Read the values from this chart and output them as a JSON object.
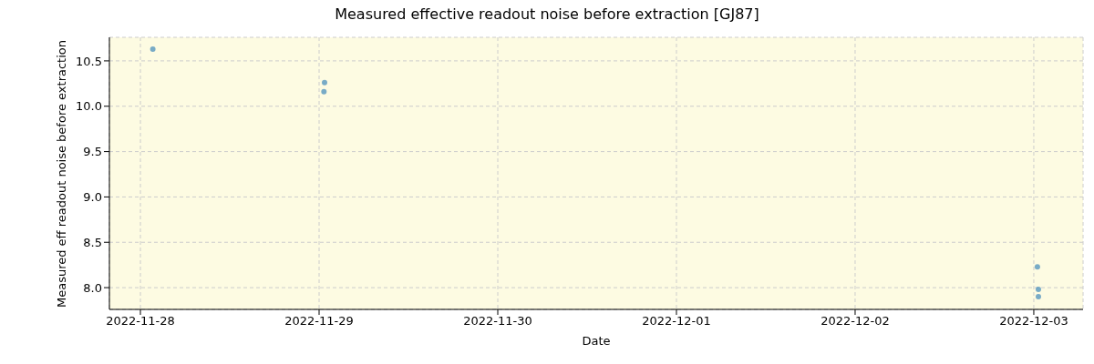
{
  "chart_data": {
    "type": "scatter",
    "title": "Measured effective readout noise before extraction [GJ87]",
    "xlabel": "Date",
    "ylabel": "Measured eff readout noise before extraction",
    "x": [
      "2022-11-28T01:40",
      "2022-11-29T00:44",
      "2022-11-29T00:39",
      "2022-12-03T00:29",
      "2022-12-03T00:37",
      "2022-12-03T00:37"
    ],
    "values": [
      10.63,
      10.26,
      10.16,
      8.23,
      7.98,
      7.9
    ],
    "color": "#1f77b4",
    "marker": "circle",
    "xlim": [
      "2022-11-27T19:50",
      "2022-12-03T06:37"
    ],
    "xticks": [
      "2022-11-28",
      "2022-11-29",
      "2022-11-30",
      "2022-12-01",
      "2022-12-02",
      "2022-12-03"
    ],
    "ylim": [
      7.76,
      10.76
    ],
    "yticks": [
      {
        "value": 8,
        "label": "8.0"
      },
      {
        "value": 8.5,
        "label": "8.5"
      },
      {
        "value": 9.0,
        "label": "9.0"
      },
      {
        "value": 9.5,
        "label": "9.5"
      },
      {
        "value": 10.0,
        "label": "10.0"
      },
      10.5
    ],
    "grid": true
  }
}
